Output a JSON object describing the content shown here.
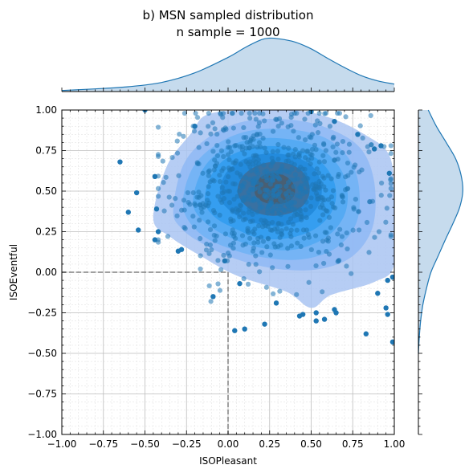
{
  "chart_data": {
    "type": "scatter",
    "title": "b) MSN sampled distribution",
    "subtitle": "n sample = 1000",
    "xlabel": "ISOPleasant",
    "ylabel": "ISOEventful",
    "xlim": [
      -1.0,
      1.0
    ],
    "ylim": [
      -1.0,
      1.0
    ],
    "xticks": [
      "−1.00",
      "−0.75",
      "−0.50",
      "−0.25",
      "0.00",
      "0.25",
      "0.50",
      "0.75",
      "1.00"
    ],
    "yticks": [
      "1.00",
      "0.75",
      "0.50",
      "0.25",
      "0.00",
      "−0.25",
      "−0.50",
      "−0.75",
      "−1.00"
    ],
    "grid": true,
    "reference_lines": {
      "x": 0.0,
      "y": 0.0,
      "style": "dashed"
    },
    "colors": {
      "points": "#1f77b4",
      "kde_fill": "#1e90ff",
      "kde_dark": "#4a5a6a",
      "marginal_fill": "#c6dbed",
      "marginal_line": "#1f77b4",
      "reference_line": "#808080"
    },
    "outlier_points": [
      {
        "x": -0.65,
        "y": 0.68
      },
      {
        "x": -0.5,
        "y": 1.0
      },
      {
        "x": -0.55,
        "y": 0.49
      },
      {
        "x": -0.6,
        "y": 0.37
      },
      {
        "x": -0.54,
        "y": 0.26
      },
      {
        "x": -0.44,
        "y": 0.2
      },
      {
        "x": -0.43,
        "y": 0.39
      },
      {
        "x": -0.44,
        "y": 0.59
      },
      {
        "x": -0.42,
        "y": 0.25
      },
      {
        "x": -0.3,
        "y": 0.13
      },
      {
        "x": -0.28,
        "y": 0.14
      },
      {
        "x": -0.09,
        "y": -0.15
      },
      {
        "x": 0.04,
        "y": -0.36
      },
      {
        "x": 0.1,
        "y": -0.35
      },
      {
        "x": 0.22,
        "y": -0.32
      },
      {
        "x": 0.29,
        "y": -0.19
      },
      {
        "x": 0.43,
        "y": -0.27
      },
      {
        "x": 0.45,
        "y": -0.26
      },
      {
        "x": 0.53,
        "y": -0.3
      },
      {
        "x": 0.58,
        "y": -0.29
      },
      {
        "x": 0.53,
        "y": -0.25
      },
      {
        "x": 0.64,
        "y": -0.23
      },
      {
        "x": 0.65,
        "y": -0.25
      },
      {
        "x": 0.83,
        "y": -0.38
      },
      {
        "x": 0.95,
        "y": -0.22
      },
      {
        "x": 0.96,
        "y": -0.26
      },
      {
        "x": 0.99,
        "y": -0.43
      },
      {
        "x": 0.96,
        "y": -0.05
      },
      {
        "x": 0.99,
        "y": -0.03
      },
      {
        "x": 0.97,
        "y": 0.61
      },
      {
        "x": 0.92,
        "y": 0.78
      },
      {
        "x": 0.88,
        "y": 0.76
      },
      {
        "x": 0.78,
        "y": 0.85
      },
      {
        "x": 0.64,
        "y": 0.93
      },
      {
        "x": 0.5,
        "y": 0.99
      },
      {
        "x": 0.9,
        "y": -0.13
      },
      {
        "x": -0.02,
        "y": 0.07
      },
      {
        "x": 0.07,
        "y": -0.07
      },
      {
        "x": -0.2,
        "y": 0.9
      }
    ],
    "dense_cluster": {
      "center_x": 0.25,
      "center_y": 0.5,
      "spread_x": 0.3,
      "spread_y": 0.24,
      "count": 700
    },
    "kde_levels": [
      {
        "level": 1,
        "points": [
          [
            -0.45,
            0.33
          ],
          [
            -0.37,
            0.65
          ],
          [
            -0.22,
            0.86
          ],
          [
            -0.13,
            0.97
          ],
          [
            0.1,
            1.0
          ],
          [
            0.4,
            1.0
          ],
          [
            0.62,
            0.95
          ],
          [
            0.82,
            0.85
          ],
          [
            0.97,
            0.72
          ],
          [
            1.0,
            0.45
          ],
          [
            1.0,
            0.05
          ],
          [
            0.88,
            -0.06
          ],
          [
            0.62,
            -0.14
          ],
          [
            0.5,
            -0.22
          ],
          [
            0.35,
            -0.12
          ],
          [
            0.05,
            -0.02
          ],
          [
            -0.18,
            0.11
          ],
          [
            -0.35,
            0.22
          ]
        ]
      },
      {
        "level": 2,
        "points": [
          [
            -0.33,
            0.38
          ],
          [
            -0.27,
            0.66
          ],
          [
            -0.12,
            0.83
          ],
          [
            0.1,
            0.93
          ],
          [
            0.38,
            0.94
          ],
          [
            0.62,
            0.88
          ],
          [
            0.8,
            0.76
          ],
          [
            0.88,
            0.55
          ],
          [
            0.87,
            0.28
          ],
          [
            0.75,
            0.1
          ],
          [
            0.55,
            0.02
          ],
          [
            0.3,
            0.02
          ],
          [
            0.05,
            0.08
          ],
          [
            -0.16,
            0.18
          ],
          [
            -0.28,
            0.27
          ]
        ]
      },
      {
        "level": 3,
        "points": [
          [
            -0.27,
            0.4
          ],
          [
            -0.22,
            0.63
          ],
          [
            -0.08,
            0.78
          ],
          [
            0.12,
            0.87
          ],
          [
            0.38,
            0.88
          ],
          [
            0.6,
            0.82
          ],
          [
            0.74,
            0.68
          ],
          [
            0.79,
            0.5
          ],
          [
            0.77,
            0.3
          ],
          [
            0.65,
            0.15
          ],
          [
            0.45,
            0.08
          ],
          [
            0.22,
            0.09
          ],
          [
            0.0,
            0.15
          ],
          [
            -0.17,
            0.24
          ]
        ]
      },
      {
        "level": 4,
        "points": [
          [
            -0.21,
            0.42
          ],
          [
            -0.16,
            0.62
          ],
          [
            -0.04,
            0.75
          ],
          [
            0.14,
            0.82
          ],
          [
            0.37,
            0.82
          ],
          [
            0.56,
            0.76
          ],
          [
            0.68,
            0.63
          ],
          [
            0.72,
            0.48
          ],
          [
            0.69,
            0.33
          ],
          [
            0.58,
            0.21
          ],
          [
            0.4,
            0.14
          ],
          [
            0.2,
            0.15
          ],
          [
            0.02,
            0.21
          ],
          [
            -0.13,
            0.3
          ]
        ]
      },
      {
        "level": 5,
        "points": [
          [
            -0.14,
            0.44
          ],
          [
            -0.1,
            0.6
          ],
          [
            0.0,
            0.71
          ],
          [
            0.16,
            0.77
          ],
          [
            0.35,
            0.77
          ],
          [
            0.52,
            0.71
          ],
          [
            0.62,
            0.6
          ],
          [
            0.65,
            0.47
          ],
          [
            0.61,
            0.35
          ],
          [
            0.51,
            0.26
          ],
          [
            0.36,
            0.21
          ],
          [
            0.19,
            0.21
          ],
          [
            0.04,
            0.27
          ],
          [
            -0.08,
            0.34
          ]
        ]
      },
      {
        "level": 6,
        "points": [
          [
            -0.05,
            0.47
          ],
          [
            -0.02,
            0.6
          ],
          [
            0.08,
            0.69
          ],
          [
            0.22,
            0.73
          ],
          [
            0.37,
            0.72
          ],
          [
            0.5,
            0.66
          ],
          [
            0.56,
            0.55
          ],
          [
            0.55,
            0.43
          ],
          [
            0.48,
            0.34
          ],
          [
            0.36,
            0.29
          ],
          [
            0.22,
            0.29
          ],
          [
            0.09,
            0.33
          ],
          [
            0.0,
            0.39
          ]
        ]
      },
      {
        "level": 7,
        "points": [
          [
            0.06,
            0.48
          ],
          [
            0.08,
            0.58
          ],
          [
            0.16,
            0.65
          ],
          [
            0.27,
            0.68
          ],
          [
            0.39,
            0.66
          ],
          [
            0.47,
            0.59
          ],
          [
            0.49,
            0.49
          ],
          [
            0.45,
            0.41
          ],
          [
            0.36,
            0.36
          ],
          [
            0.24,
            0.35
          ],
          [
            0.13,
            0.39
          ]
        ]
      },
      {
        "level": 8,
        "points": [
          [
            0.16,
            0.49
          ],
          [
            0.18,
            0.57
          ],
          [
            0.25,
            0.61
          ],
          [
            0.33,
            0.6
          ],
          [
            0.39,
            0.55
          ],
          [
            0.4,
            0.48
          ],
          [
            0.35,
            0.43
          ],
          [
            0.27,
            0.42
          ],
          [
            0.2,
            0.44
          ]
        ]
      }
    ],
    "x_marginal": {
      "x": [
        -1.0,
        -0.8,
        -0.6,
        -0.4,
        -0.2,
        0.0,
        0.1,
        0.2,
        0.25,
        0.3,
        0.4,
        0.5,
        0.6,
        0.7,
        0.8,
        0.9,
        1.0
      ],
      "density": [
        0.02,
        0.05,
        0.09,
        0.17,
        0.35,
        0.64,
        0.82,
        0.97,
        1.0,
        0.99,
        0.93,
        0.8,
        0.62,
        0.45,
        0.3,
        0.2,
        0.14
      ]
    },
    "y_marginal": {
      "y": [
        -0.5,
        -0.4,
        -0.3,
        -0.2,
        -0.1,
        0.0,
        0.1,
        0.2,
        0.3,
        0.4,
        0.5,
        0.6,
        0.7,
        0.8,
        0.9,
        1.0
      ],
      "density": [
        0.0,
        0.02,
        0.05,
        0.1,
        0.18,
        0.28,
        0.44,
        0.6,
        0.77,
        0.92,
        0.99,
        0.95,
        0.83,
        0.62,
        0.4,
        0.22
      ]
    }
  }
}
